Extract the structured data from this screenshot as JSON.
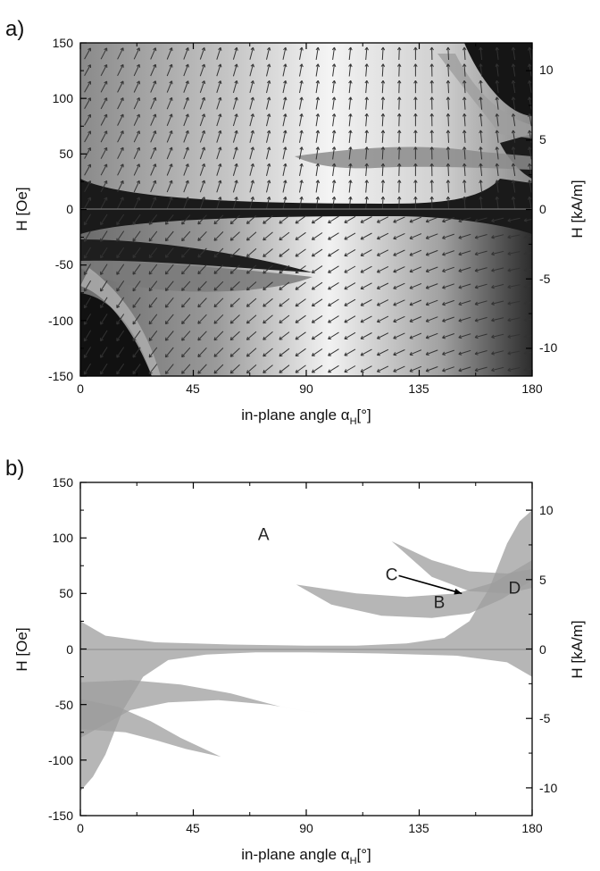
{
  "panel_a": {
    "letter": "a)",
    "xlabel": "in-plane angle α",
    "xlabel_sub": "H",
    "xlabel_unit": "[°]",
    "ylabel_left": "H [Oe]",
    "ylabel_right": "H [kA/m]",
    "xticks": [
      "0",
      "45",
      "90",
      "135",
      "180"
    ],
    "yticks_left": [
      "150",
      "100",
      "50",
      "0",
      "-50",
      "-100",
      "-150"
    ],
    "yticks_right": [
      "10",
      "5",
      "0",
      "-5",
      "-10"
    ]
  },
  "panel_b": {
    "letter": "b)",
    "xlabel": "in-plane angle α",
    "xlabel_sub": "H",
    "xlabel_unit": "[°]",
    "ylabel_left": "H [Oe]",
    "ylabel_right": "H [kA/m]",
    "xticks": [
      "0",
      "45",
      "90",
      "135",
      "180"
    ],
    "yticks_left": [
      "150",
      "100",
      "50",
      "0",
      "-50",
      "-100",
      "-150"
    ],
    "yticks_right": [
      "10",
      "5",
      "0",
      "-5",
      "-10"
    ],
    "region_labels": [
      "A",
      "B",
      "C",
      "D"
    ]
  },
  "chart_data": [
    {
      "type": "heatmap",
      "xlim": [
        0,
        180
      ],
      "ylim": [
        -150,
        150
      ],
      "ylim_right": [
        -12,
        12
      ]
    },
    {
      "type": "area",
      "xlim": [
        0,
        180
      ],
      "ylim": [
        -150,
        150
      ],
      "ylim_right": [
        -12,
        12
      ],
      "regions": [
        {
          "label": "A",
          "x": 73,
          "y": 98
        },
        {
          "label": "B",
          "x": 143,
          "y": 37
        },
        {
          "label": "C",
          "x": 124,
          "y": 62,
          "arrow_to": [
            152,
            50
          ]
        },
        {
          "label": "D",
          "x": 173,
          "y": 50
        }
      ],
      "bands": [
        {
          "name": "central",
          "upper": [
            [
              0,
              25
            ],
            [
              10,
              12
            ],
            [
              30,
              6
            ],
            [
              60,
              4
            ],
            [
              90,
              3
            ],
            [
              110,
              3
            ],
            [
              130,
              5
            ],
            [
              145,
              10
            ],
            [
              155,
              25
            ],
            [
              163,
              55
            ],
            [
              170,
              95
            ],
            [
              175,
              115
            ],
            [
              180,
              125
            ]
          ],
          "lower": [
            [
              180,
              -25
            ],
            [
              170,
              -12
            ],
            [
              150,
              -6
            ],
            [
              120,
              -4
            ],
            [
              90,
              -3
            ],
            [
              70,
              -3
            ],
            [
              50,
              -5
            ],
            [
              35,
              -10
            ],
            [
              25,
              -25
            ],
            [
              17,
              -55
            ],
            [
              10,
              -95
            ],
            [
              5,
              -115
            ],
            [
              0,
              -128
            ]
          ]
        },
        {
          "name": "lobe-upper-1",
          "upper": [
            [
              86,
              58
            ],
            [
              110,
              50
            ],
            [
              130,
              47
            ],
            [
              150,
              50
            ],
            [
              165,
              60
            ],
            [
              180,
              80
            ]
          ],
          "lower": [
            [
              180,
              62
            ],
            [
              168,
              45
            ],
            [
              155,
              32
            ],
            [
              140,
              28
            ],
            [
              120,
              30
            ],
            [
              100,
              40
            ],
            [
              86,
              58
            ]
          ]
        },
        {
          "name": "lobe-upper-2",
          "upper": [
            [
              124,
              97
            ],
            [
              140,
              80
            ],
            [
              155,
              70
            ],
            [
              170,
              68
            ],
            [
              180,
              72
            ]
          ],
          "lower": [
            [
              180,
              55
            ],
            [
              170,
              50
            ],
            [
              155,
              52
            ],
            [
              140,
              65
            ],
            [
              124,
              97
            ]
          ]
        },
        {
          "name": "lobe-lower-1",
          "upper": [
            [
              0,
              -30
            ],
            [
              20,
              -28
            ],
            [
              40,
              -32
            ],
            [
              60,
              -40
            ],
            [
              80,
              -52
            ],
            [
              95,
              -58
            ]
          ],
          "lower": [
            [
              95,
              -58
            ],
            [
              75,
              -50
            ],
            [
              55,
              -46
            ],
            [
              35,
              -48
            ],
            [
              20,
              -55
            ],
            [
              0,
              -80
            ]
          ]
        },
        {
          "name": "lobe-lower-2",
          "upper": [
            [
              0,
              -45
            ],
            [
              15,
              -52
            ],
            [
              28,
              -65
            ],
            [
              40,
              -80
            ],
            [
              56,
              -97
            ]
          ],
          "lower": [
            [
              56,
              -97
            ],
            [
              42,
              -90
            ],
            [
              30,
              -82
            ],
            [
              18,
              -75
            ],
            [
              0,
              -72
            ]
          ]
        }
      ]
    }
  ]
}
